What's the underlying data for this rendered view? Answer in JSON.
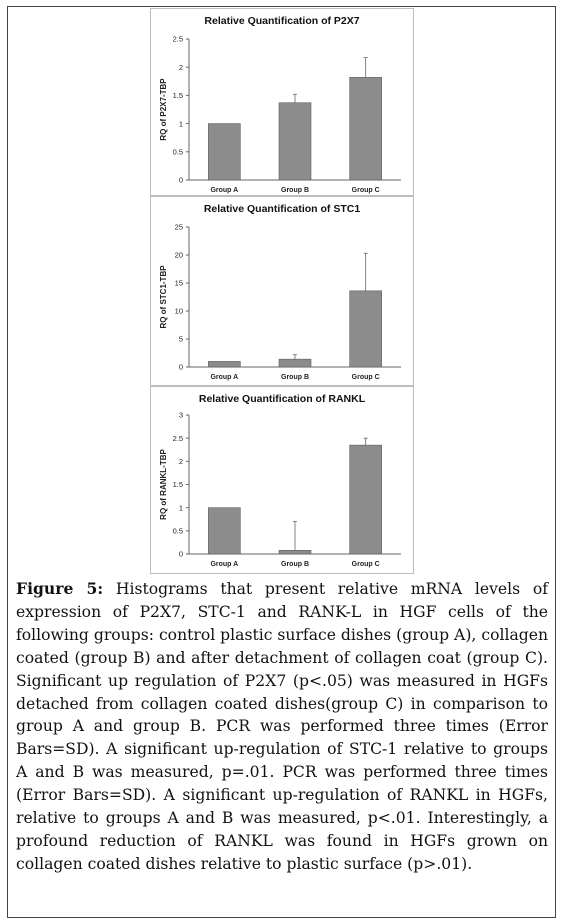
{
  "chart_data": [
    {
      "type": "bar",
      "title": "Relative Quantification of P2X7",
      "ylabel": "RQ of P2X7-TBP",
      "categories": [
        "Group A",
        "Group B",
        "Group C"
      ],
      "values": [
        1.0,
        1.37,
        1.82
      ],
      "errors": [
        0.0,
        0.15,
        0.35
      ],
      "ylim": [
        0,
        2.5
      ],
      "yticks": [
        "0",
        "0.5",
        "1",
        "1.5",
        "2",
        "2.5"
      ],
      "ytick_values": [
        0,
        0.5,
        1,
        1.5,
        2,
        2.5
      ],
      "bar_color": "#8c8c8c",
      "grid": false,
      "legend": "none"
    },
    {
      "type": "bar",
      "title": "Relative Quantification of STC1",
      "ylabel": "RQ of STC1-TBP",
      "categories": [
        "Group A",
        "Group B",
        "Group C"
      ],
      "values": [
        1.0,
        1.4,
        13.6
      ],
      "errors": [
        0.0,
        0.8,
        6.7
      ],
      "ylim": [
        0,
        25
      ],
      "yticks": [
        "0",
        "5",
        "10",
        "15",
        "20",
        "25"
      ],
      "ytick_values": [
        0,
        5,
        10,
        15,
        20,
        25
      ],
      "bar_color": "#8c8c8c",
      "grid": false,
      "legend": "none"
    },
    {
      "type": "bar",
      "title": "Relative Quantification of RANKL",
      "ylabel": "RQ of RANKL-TBP",
      "categories": [
        "Group A",
        "Group B",
        "Group C"
      ],
      "values": [
        1.0,
        0.08,
        2.35
      ],
      "errors": [
        0.0,
        0.62,
        0.15
      ],
      "ylim": [
        0,
        3
      ],
      "yticks": [
        "0",
        "0.5",
        "1",
        "1.5",
        "2",
        "2.5",
        "3"
      ],
      "ytick_values": [
        0,
        0.5,
        1,
        1.5,
        2,
        2.5,
        3
      ],
      "bar_color": "#8c8c8c",
      "grid": false,
      "legend": "none"
    }
  ],
  "caption": {
    "label": "Figure 5:",
    "text": "Histograms that present relative mRNA levels of expression of P2X7, STC-1 and RANK-L in HGF cells of the following groups: control plastic surface dishes (group A), collagen coated (group B) and after detachment of collagen coat (group C). Significant up regulation of P2X7 (p<.05) was measured in HGFs detached from collagen coated dishes(group C) in comparison to group A and group B. PCR was performed three times (Error Bars=SD). A significant up-regulation of STC-1 relative to groups A and B was measured, p=.01. PCR was performed three times (Error Bars=SD). A significant up-regulation of RANKL in HGFs, relative to groups A and B was measured, p<.01. Interestingly, a profound reduction of RANKL was found in HGFs grown on collagen coated dishes relative to plastic surface (p>.01)."
  }
}
